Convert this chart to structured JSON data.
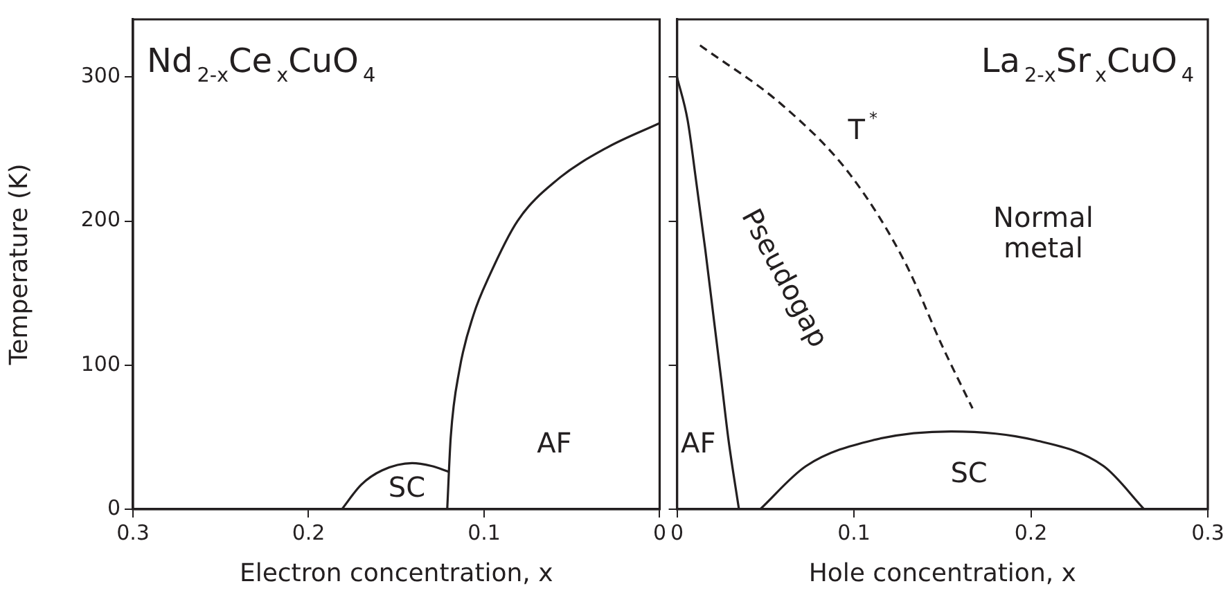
{
  "chart_data": [
    {
      "type": "line",
      "title": "Nd$_{2-x}$Ce$_{x}$CuO$_{4}$",
      "xlabel": "Electron concentration, x",
      "ylabel": "Temperature (K)",
      "xlim": [
        0.3,
        0
      ],
      "xticks": [
        0.3,
        0.2,
        0.1,
        0
      ],
      "ylim": [
        0,
        340
      ],
      "yticks": [
        0,
        100,
        200,
        300
      ],
      "grid": false,
      "legend": false,
      "marker": "none",
      "series": [
        {
          "color": "#231f20",
          "line_style": "solid",
          "x": [
            0.121,
            0.119,
            0.114,
            0.106,
            0.097,
            0.081,
            0.058,
            0.03,
            0
          ],
          "values": [
            0,
            50,
            97,
            135,
            162,
            200,
            229,
            251,
            268
          ]
        },
        {
          "color": "#231f20",
          "line_style": "solid",
          "x": [
            0.181,
            0.17,
            0.158,
            0.141,
            0.13,
            0.12
          ],
          "values": [
            0,
            17,
            27,
            32,
            30,
            26
          ]
        }
      ],
      "annotations": [
        "SC",
        "AF"
      ]
    },
    {
      "type": "line",
      "title": "La$_{2-x}$Sr$_{x}$CuO$_{4}$",
      "xlabel": "Hole concentration, x",
      "xlim": [
        0,
        0.3
      ],
      "xticks": [
        0,
        0.1,
        0.2,
        0.3
      ],
      "ylim": [
        0,
        340
      ],
      "yticks": [
        0,
        100,
        200,
        300
      ],
      "tick_labels": "x",
      "grid": false,
      "legend": false,
      "marker": "none",
      "series": [
        {
          "color": "#231f20",
          "line_style": "solid",
          "x": [
            0,
            0.006,
            0.011,
            0.016,
            0.021,
            0.025,
            0.029,
            0.035
          ],
          "values": [
            300,
            270,
            226,
            180,
            130,
            90,
            49,
            0
          ]
        },
        {
          "color": "#231f20",
          "line_style": "solid",
          "x": [
            0.047,
            0.073,
            0.111,
            0.155,
            0.202,
            0.241,
            0.264
          ],
          "values": [
            0,
            30,
            48,
            54,
            48,
            30,
            0
          ]
        },
        {
          "color": "#231f20",
          "line_style": "dashed",
          "x": [
            0.013,
            0.06,
            0.098,
            0.129,
            0.15,
            0.167
          ],
          "values": [
            322,
            280,
            232,
            171,
            113,
            70
          ]
        }
      ],
      "annotations": [
        "AF",
        "SC",
        "T$^{*}$",
        "Pseudogap",
        "Normal metal"
      ]
    }
  ]
}
